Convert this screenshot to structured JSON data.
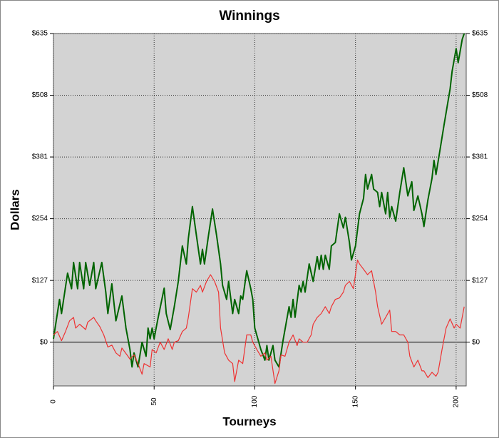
{
  "chart_data": {
    "type": "line",
    "title": "Winnings",
    "x_label": "Tourneys",
    "y_label": "Dollars",
    "xlim": [
      0,
      205
    ],
    "xticks": [
      0,
      50,
      100,
      150,
      200
    ],
    "ylim": [
      -90,
      635
    ],
    "yticks": [
      {
        "value": 0,
        "label": "$0"
      },
      {
        "value": 127,
        "label": "$127"
      },
      {
        "value": 254,
        "label": "$254"
      },
      {
        "value": 381,
        "label": "$381"
      },
      {
        "value": 508,
        "label": "$508"
      },
      {
        "value": 635,
        "label": "$635"
      }
    ],
    "grid": true,
    "series": [
      {
        "color": "#006400",
        "x": [
          0,
          3,
          4,
          7,
          9,
          10,
          12,
          13,
          15,
          16,
          18,
          20,
          21,
          24,
          26,
          27,
          29,
          31,
          34,
          36,
          38,
          39,
          40,
          42,
          44,
          46,
          47,
          48,
          49,
          50,
          51,
          52,
          55,
          56,
          58,
          60,
          62,
          63,
          64,
          66,
          67,
          69,
          71,
          73,
          74,
          75,
          77,
          79,
          81,
          83,
          84,
          86,
          87,
          89,
          90,
          92,
          93,
          94,
          96,
          98,
          99,
          100,
          103,
          105,
          106,
          107,
          109,
          110,
          112,
          114,
          117,
          118,
          119,
          120,
          122,
          123,
          124,
          125,
          127,
          129,
          131,
          132,
          133,
          134,
          135,
          137,
          138,
          140,
          142,
          144,
          145,
          147,
          148,
          150,
          152,
          154,
          155,
          156,
          158,
          159,
          161,
          162,
          163,
          165,
          166,
          167,
          168,
          170,
          172,
          174,
          176,
          178,
          179,
          181,
          183,
          184,
          186,
          188,
          189,
          190,
          192,
          194,
          197,
          198,
          200,
          201,
          203,
          204
        ],
        "values": [
          7,
          88,
          59,
          142,
          110,
          164,
          110,
          164,
          110,
          164,
          117,
          164,
          110,
          164,
          103,
          59,
          120,
          44,
          95,
          29,
          -15,
          -51,
          -22,
          -51,
          0,
          -29,
          29,
          7,
          29,
          7,
          29,
          51,
          111,
          59,
          26,
          73,
          125,
          161,
          198,
          161,
          213,
          279,
          220,
          161,
          191,
          161,
          220,
          274,
          220,
          161,
          117,
          88,
          125,
          59,
          88,
          59,
          95,
          88,
          147,
          110,
          88,
          29,
          -15,
          -37,
          -7,
          -37,
          -7,
          -37,
          -51,
          3,
          73,
          51,
          88,
          51,
          117,
          103,
          125,
          103,
          161,
          125,
          176,
          150,
          179,
          150,
          179,
          150,
          198,
          205,
          264,
          235,
          257,
          205,
          169,
          198,
          264,
          296,
          345,
          315,
          345,
          315,
          308,
          279,
          308,
          264,
          308,
          257,
          279,
          249,
          308,
          359,
          301,
          330,
          271,
          301,
          264,
          238,
          293,
          337,
          374,
          345,
          396,
          447,
          521,
          557,
          604,
          575,
          623,
          635
        ]
      },
      {
        "color": "#ee3333",
        "x": [
          0,
          2,
          4,
          6,
          8,
          10,
          11,
          13,
          16,
          17,
          20,
          21,
          23,
          25,
          27,
          29,
          31,
          33,
          34,
          37,
          38,
          40,
          42,
          44,
          45,
          48,
          49,
          51,
          53,
          55,
          57,
          59,
          60,
          62,
          64,
          66,
          67,
          69,
          71,
          73,
          74,
          76,
          78,
          80,
          82,
          83,
          85,
          87,
          89,
          90,
          92,
          94,
          96,
          98,
          99,
          101,
          103,
          105,
          106,
          108,
          110,
          112,
          113,
          115,
          117,
          119,
          121,
          122,
          124,
          126,
          128,
          129,
          131,
          133,
          135,
          137,
          138,
          140,
          142,
          144,
          145,
          147,
          149,
          151,
          152,
          154,
          156,
          158,
          160,
          161,
          163,
          165,
          167,
          168,
          170,
          172,
          174,
          176,
          177,
          179,
          181,
          183,
          184,
          186,
          188,
          190,
          191,
          193,
          195,
          197,
          199,
          200,
          202,
          204
        ],
        "values": [
          15,
          22,
          3,
          22,
          44,
          51,
          29,
          37,
          26,
          41,
          51,
          44,
          32,
          15,
          -10,
          -6,
          -22,
          -29,
          -12,
          -29,
          -35,
          -26,
          -44,
          -66,
          -44,
          -51,
          -15,
          -22,
          0,
          -15,
          7,
          -15,
          0,
          3,
          22,
          29,
          51,
          110,
          103,
          117,
          103,
          125,
          139,
          125,
          103,
          29,
          -22,
          -37,
          -44,
          -81,
          -37,
          -44,
          15,
          15,
          0,
          -15,
          -29,
          -22,
          -37,
          -29,
          -85,
          -59,
          -26,
          -29,
          0,
          15,
          -7,
          7,
          0,
          0,
          15,
          37,
          51,
          59,
          73,
          59,
          73,
          88,
          91,
          103,
          117,
          125,
          110,
          169,
          161,
          150,
          139,
          147,
          103,
          73,
          37,
          51,
          66,
          22,
          22,
          15,
          15,
          0,
          -29,
          -51,
          -37,
          -59,
          -59,
          -73,
          -62,
          -70,
          -62,
          -15,
          29,
          48,
          29,
          37,
          29,
          73
        ]
      }
    ]
  }
}
